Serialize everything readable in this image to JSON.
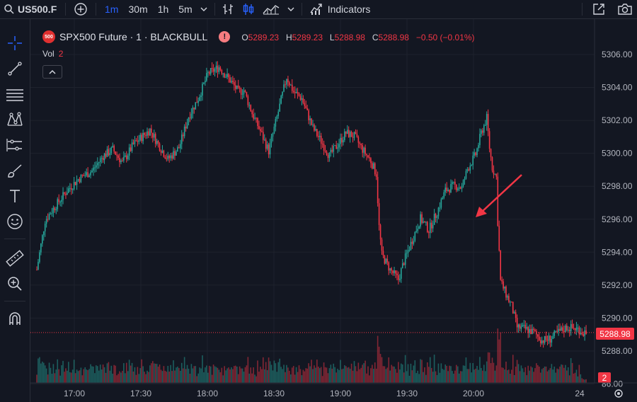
{
  "toolbar": {
    "symbol": "US500.F",
    "timeframes": [
      "1m",
      "30m",
      "1h",
      "5m"
    ],
    "active_timeframe": "1m",
    "indicators_label": "Indicators"
  },
  "legend": {
    "badge": "500",
    "title": "SPX500 Future · 1 · BLACKBULL",
    "open_key": "O",
    "open": "5289.23",
    "high_key": "H",
    "high": "5289.23",
    "low_key": "L",
    "low": "5288.98",
    "close_key": "C",
    "close": "5288.98",
    "change": "−0.50 (−0.01%)"
  },
  "volume": {
    "label": "Vol",
    "value": "2"
  },
  "price_scale": {
    "labels": [
      "5306.00",
      "5304.00",
      "5302.00",
      "5300.00",
      "5298.00",
      "5296.00",
      "5294.00",
      "5292.00",
      "5290.00",
      "5288.00",
      "86.00"
    ],
    "last_price": "5288.98",
    "volume_badge": "2"
  },
  "time_axis": {
    "labels": [
      "17:00",
      "17:30",
      "18:00",
      "18:30",
      "19:00",
      "19:30",
      "20:00",
      "24"
    ]
  },
  "colors": {
    "up": "#26a69a",
    "down": "#f23645",
    "accent": "#2962ff",
    "background": "#131722"
  },
  "icons": {
    "toolbar": [
      "search-icon",
      "add-symbol-icon",
      "chevron-down-icon",
      "bar-chart-icon",
      "candles-icon",
      "area-chart-icon",
      "indicators-icon",
      "snapshot-icon",
      "camera-icon"
    ],
    "sidebar": [
      "crosshair-icon",
      "trend-line-icon",
      "horizontal-lines-icon",
      "pattern-icon",
      "forecast-icon",
      "brush-icon",
      "text-icon",
      "emoji-icon",
      "ruler-icon",
      "zoom-icon",
      "magnet-icon"
    ],
    "annotation": "red-arrow-icon",
    "settings": "gear-icon"
  },
  "chart_data": {
    "type": "candlestick",
    "symbol": "SPX500 Future",
    "interval": "1",
    "y_range": [
      5287.0,
      5306.5
    ],
    "x_ticks": [
      "17:00",
      "17:30",
      "18:00",
      "18:30",
      "19:00",
      "19:30",
      "20:00"
    ],
    "last_price": 5288.98,
    "path": [
      [
        0,
        5292.8
      ],
      [
        6,
        5295.8
      ],
      [
        12,
        5296.5
      ],
      [
        22,
        5297.6
      ],
      [
        30,
        5298.3
      ],
      [
        40,
        5298.8
      ],
      [
        48,
        5299.7
      ],
      [
        55,
        5300.1
      ],
      [
        62,
        5299.3
      ],
      [
        70,
        5300.4
      ],
      [
        82,
        5301.3
      ],
      [
        88,
        5300.4
      ],
      [
        95,
        5299.5
      ],
      [
        103,
        5300.2
      ],
      [
        110,
        5302.1
      ],
      [
        117,
        5303.2
      ],
      [
        124,
        5304.7
      ],
      [
        132,
        5305.1
      ],
      [
        140,
        5304.3
      ],
      [
        146,
        5303.6
      ],
      [
        150,
        5303.7
      ],
      [
        156,
        5302.3
      ],
      [
        162,
        5301.2
      ],
      [
        168,
        5300.0
      ],
      [
        175,
        5302.4
      ],
      [
        181,
        5304.5
      ],
      [
        186,
        5303.6
      ],
      [
        192,
        5303.2
      ],
      [
        200,
        5301.4
      ],
      [
        206,
        5300.6
      ],
      [
        212,
        5299.7
      ],
      [
        218,
        5300.4
      ],
      [
        224,
        5301.1
      ],
      [
        230,
        5300.9
      ],
      [
        236,
        5300.1
      ],
      [
        242,
        5299.4
      ],
      [
        246,
        5298.6
      ],
      [
        248,
        5295.4
      ],
      [
        250,
        5293.7
      ],
      [
        256,
        5292.8
      ],
      [
        262,
        5292.2
      ],
      [
        266,
        5293.3
      ],
      [
        272,
        5294.6
      ],
      [
        278,
        5295.9
      ],
      [
        284,
        5295.2
      ],
      [
        290,
        5296.3
      ],
      [
        296,
        5297.6
      ],
      [
        302,
        5297.9
      ],
      [
        308,
        5297.8
      ],
      [
        312,
        5298.9
      ],
      [
        318,
        5299.8
      ],
      [
        322,
        5301.1
      ],
      [
        326,
        5302.0
      ],
      [
        328,
        5300.2
      ],
      [
        330,
        5299.0
      ],
      [
        333,
        5298.4
      ],
      [
        334,
        5295.7
      ],
      [
        336,
        5292.1
      ],
      [
        340,
        5291.3
      ],
      [
        344,
        5290.6
      ],
      [
        348,
        5289.3
      ],
      [
        354,
        5289.2
      ],
      [
        360,
        5289.0
      ],
      [
        366,
        5288.5
      ],
      [
        372,
        5288.6
      ],
      [
        378,
        5289.0
      ],
      [
        384,
        5289.3
      ],
      [
        392,
        5289.2
      ],
      [
        398,
        5288.9
      ]
    ]
  }
}
